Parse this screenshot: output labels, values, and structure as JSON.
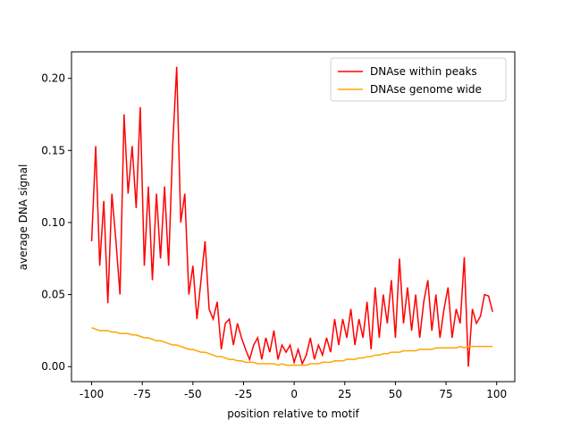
{
  "chart_data": {
    "type": "line",
    "xlabel": "position relative to motif",
    "ylabel": "average DNA signal",
    "x": [
      -100,
      -98,
      -96,
      -94,
      -92,
      -90,
      -88,
      -86,
      -84,
      -82,
      -80,
      -78,
      -76,
      -74,
      -72,
      -70,
      -68,
      -66,
      -64,
      -62,
      -60,
      -58,
      -56,
      -54,
      -52,
      -50,
      -48,
      -46,
      -44,
      -42,
      -40,
      -38,
      -36,
      -34,
      -32,
      -30,
      -28,
      -26,
      -24,
      -22,
      -20,
      -18,
      -16,
      -14,
      -12,
      -10,
      -8,
      -6,
      -4,
      -2,
      0,
      2,
      4,
      6,
      8,
      10,
      12,
      14,
      16,
      18,
      20,
      22,
      24,
      26,
      28,
      30,
      32,
      34,
      36,
      38,
      40,
      42,
      44,
      46,
      48,
      50,
      52,
      54,
      56,
      58,
      60,
      62,
      64,
      66,
      68,
      70,
      72,
      74,
      76,
      78,
      80,
      82,
      84,
      86,
      88,
      90,
      92,
      94,
      96,
      98
    ],
    "series": [
      {
        "name": "DNAse within peaks",
        "color": "#ff0000",
        "values": [
          0.087,
          0.153,
          0.07,
          0.115,
          0.044,
          0.12,
          0.087,
          0.05,
          0.175,
          0.12,
          0.153,
          0.11,
          0.18,
          0.07,
          0.125,
          0.06,
          0.12,
          0.075,
          0.125,
          0.07,
          0.153,
          0.208,
          0.1,
          0.12,
          0.05,
          0.07,
          0.033,
          0.06,
          0.087,
          0.04,
          0.033,
          0.045,
          0.012,
          0.03,
          0.033,
          0.015,
          0.03,
          0.02,
          0.012,
          0.005,
          0.015,
          0.02,
          0.005,
          0.02,
          0.01,
          0.025,
          0.005,
          0.015,
          0.01,
          0.015,
          0.003,
          0.012,
          0.002,
          0.008,
          0.02,
          0.005,
          0.015,
          0.008,
          0.02,
          0.01,
          0.033,
          0.015,
          0.033,
          0.02,
          0.04,
          0.015,
          0.033,
          0.02,
          0.045,
          0.012,
          0.055,
          0.02,
          0.05,
          0.03,
          0.06,
          0.02,
          0.075,
          0.03,
          0.055,
          0.025,
          0.05,
          0.02,
          0.045,
          0.06,
          0.025,
          0.05,
          0.02,
          0.04,
          0.055,
          0.02,
          0.04,
          0.03,
          0.076,
          0.0,
          0.04,
          0.03,
          0.035,
          0.05,
          0.049,
          0.038
        ]
      },
      {
        "name": "DNAse genome wide",
        "color": "#ffa500",
        "values": [
          0.027,
          0.026,
          0.025,
          0.025,
          0.025,
          0.024,
          0.024,
          0.023,
          0.023,
          0.023,
          0.022,
          0.022,
          0.021,
          0.02,
          0.02,
          0.019,
          0.018,
          0.018,
          0.017,
          0.016,
          0.015,
          0.015,
          0.014,
          0.013,
          0.012,
          0.012,
          0.011,
          0.01,
          0.01,
          0.009,
          0.008,
          0.007,
          0.007,
          0.006,
          0.005,
          0.005,
          0.004,
          0.004,
          0.003,
          0.003,
          0.003,
          0.002,
          0.002,
          0.002,
          0.002,
          0.002,
          0.001,
          0.002,
          0.001,
          0.001,
          0.001,
          0.001,
          0.001,
          0.001,
          0.002,
          0.002,
          0.002,
          0.003,
          0.003,
          0.003,
          0.004,
          0.004,
          0.004,
          0.005,
          0.005,
          0.005,
          0.006,
          0.006,
          0.007,
          0.007,
          0.008,
          0.008,
          0.009,
          0.009,
          0.01,
          0.01,
          0.01,
          0.011,
          0.011,
          0.011,
          0.011,
          0.012,
          0.012,
          0.012,
          0.012,
          0.013,
          0.013,
          0.013,
          0.013,
          0.013,
          0.013,
          0.014,
          0.013,
          0.014,
          0.014,
          0.014,
          0.014,
          0.014,
          0.014,
          0.014
        ]
      }
    ],
    "xlim": [
      -109.95,
      108.95
    ],
    "ylim": [
      -0.0104,
      0.2184
    ],
    "xticks": [
      -100,
      -75,
      -50,
      -25,
      0,
      25,
      50,
      75,
      100
    ],
    "yticks": [
      {
        "value": 0,
        "label": "0.00"
      },
      {
        "value": 0.05,
        "label": "0.05"
      },
      {
        "value": 0.1,
        "label": "0.10"
      },
      {
        "value": 0.15,
        "label": "0.15"
      },
      {
        "value": 0.2,
        "label": "0.20"
      }
    ],
    "legend": "upper right"
  }
}
